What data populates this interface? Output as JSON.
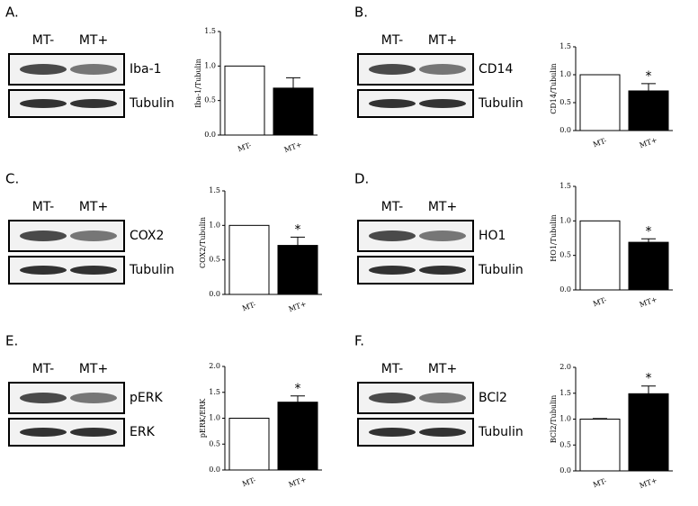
{
  "chart_data": [
    {
      "type": "bar",
      "panel": "A.",
      "blot": {
        "lanes": [
          "MT-",
          "MT+"
        ],
        "rows": [
          "Iba-1",
          "Tubulin"
        ]
      },
      "y_label": "Iba-1/Tubulin",
      "categories": [
        "MT-",
        "MT+"
      ],
      "values": [
        1.0,
        0.68
      ],
      "errors": [
        0,
        0.15
      ],
      "colors": [
        "#ffffff",
        "#000000"
      ],
      "annotations": [],
      "ylim": [
        0,
        1.5
      ],
      "yticks": [
        {
          "value": 0,
          "label": "0.0"
        },
        {
          "value": 0.5,
          "label": "0.5"
        },
        {
          "value": 1,
          "label": "1.0"
        },
        {
          "value": 1.5,
          "label": "1.5"
        }
      ]
    },
    {
      "type": "bar",
      "panel": "B.",
      "blot": {
        "lanes": [
          "MT-",
          "MT+"
        ],
        "rows": [
          "CD14",
          "Tubulin"
        ]
      },
      "y_label": "CD14/Tubulin",
      "categories": [
        "MT-",
        "MT+"
      ],
      "values": [
        1.0,
        0.71
      ],
      "errors": [
        0,
        0.13
      ],
      "colors": [
        "#ffffff",
        "#000000"
      ],
      "annotations": [
        {
          "text": "*",
          "x": "MT+"
        }
      ],
      "ylim": [
        0,
        1.5
      ],
      "yticks": [
        {
          "value": 0,
          "label": "0.0"
        },
        {
          "value": 0.5,
          "label": "0.5"
        },
        {
          "value": 1,
          "label": "1.0"
        },
        {
          "value": 1.5,
          "label": "1.5"
        }
      ]
    },
    {
      "type": "bar",
      "panel": "C.",
      "blot": {
        "lanes": [
          "MT-",
          "MT+"
        ],
        "rows": [
          "COX2",
          "Tubulin"
        ]
      },
      "y_label": "COX2/Tubulin",
      "categories": [
        "MT-",
        "MT+"
      ],
      "values": [
        1.0,
        0.71
      ],
      "errors": [
        0,
        0.12
      ],
      "colors": [
        "#ffffff",
        "#000000"
      ],
      "annotations": [
        {
          "text": "*",
          "x": "MT+"
        }
      ],
      "ylim": [
        0,
        1.5
      ],
      "yticks": [
        {
          "value": 0,
          "label": "0.0"
        },
        {
          "value": 0.5,
          "label": "0.5"
        },
        {
          "value": 1,
          "label": "1.0"
        },
        {
          "value": 1.5,
          "label": "1.5"
        }
      ]
    },
    {
      "type": "bar",
      "panel": "D.",
      "blot": {
        "lanes": [
          "MT-",
          "MT+"
        ],
        "rows": [
          "HO1",
          "Tubulin"
        ]
      },
      "y_label": "HO1/Tubulin",
      "categories": [
        "MT-",
        "MT+"
      ],
      "values": [
        1.0,
        0.69
      ],
      "errors": [
        0,
        0.05
      ],
      "colors": [
        "#ffffff",
        "#000000"
      ],
      "annotations": [
        {
          "text": "*",
          "x": "MT+"
        }
      ],
      "ylim": [
        0,
        1.5
      ],
      "yticks": [
        {
          "value": 0,
          "label": "0.0"
        },
        {
          "value": 0.5,
          "label": "0.5"
        },
        {
          "value": 1,
          "label": "1.0"
        },
        {
          "value": 1.5,
          "label": "1.5"
        }
      ]
    },
    {
      "type": "bar",
      "panel": "E.",
      "blot": {
        "lanes": [
          "MT-",
          "MT+"
        ],
        "rows": [
          "pERK",
          "ERK"
        ]
      },
      "y_label": "pERK/ERK",
      "categories": [
        "MT-",
        "MT+"
      ],
      "values": [
        1.0,
        1.31
      ],
      "errors": [
        0,
        0.12
      ],
      "colors": [
        "#ffffff",
        "#000000"
      ],
      "annotations": [
        {
          "text": "*",
          "x": "MT+"
        }
      ],
      "ylim": [
        0,
        2
      ],
      "yticks": [
        {
          "value": 0,
          "label": "0.0"
        },
        {
          "value": 0.5,
          "label": "0.5"
        },
        {
          "value": 1,
          "label": "1.0"
        },
        {
          "value": 1.5,
          "label": "1.5"
        },
        {
          "value": 2,
          "label": "2.0"
        }
      ]
    },
    {
      "type": "bar",
      "panel": "F.",
      "blot": {
        "lanes": [
          "MT-",
          "MT+"
        ],
        "rows": [
          "BCl2",
          "Tubulin"
        ]
      },
      "y_label": "BCl2/Tubulin",
      "categories": [
        "MT-",
        "MT+"
      ],
      "values": [
        1.0,
        1.49
      ],
      "errors": [
        0.01,
        0.15
      ],
      "colors": [
        "#ffffff",
        "#000000"
      ],
      "annotations": [
        {
          "text": "*",
          "x": "MT+"
        }
      ],
      "ylim": [
        0,
        2
      ],
      "yticks": [
        {
          "value": 0,
          "label": "0.0"
        },
        {
          "value": 0.5,
          "label": "0.5"
        },
        {
          "value": 1,
          "label": "1.0"
        },
        {
          "value": 1.5,
          "label": "1.5"
        },
        {
          "value": 2,
          "label": "2.0"
        }
      ]
    }
  ]
}
